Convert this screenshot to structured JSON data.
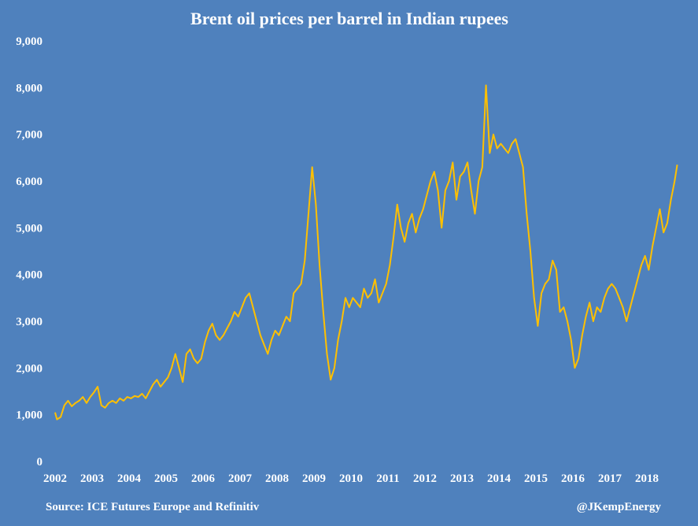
{
  "chart_data": {
    "type": "line",
    "title": "Brent oil prices per barrel in Indian rupees",
    "xlabel": "",
    "ylabel": "",
    "ylim": [
      0,
      9000
    ],
    "xlim": [
      2002.0,
      2018.85
    ],
    "grid": false,
    "legend": "none",
    "y_ticks": [
      "0",
      "1,000",
      "2,000",
      "3,000",
      "4,000",
      "5,000",
      "6,000",
      "7,000",
      "8,000",
      "9,000"
    ],
    "x_ticks": [
      "2002",
      "2003",
      "2004",
      "2005",
      "2006",
      "2007",
      "2008",
      "2009",
      "2010",
      "2011",
      "2012",
      "2013",
      "2014",
      "2015",
      "2016",
      "2017",
      "2018"
    ],
    "series": [
      {
        "name": "",
        "color": "#ffc000",
        "points": [
          [
            2002.0,
            1050
          ],
          [
            2002.05,
            900
          ],
          [
            2002.15,
            950
          ],
          [
            2002.25,
            1200
          ],
          [
            2002.35,
            1300
          ],
          [
            2002.45,
            1180
          ],
          [
            2002.55,
            1250
          ],
          [
            2002.65,
            1300
          ],
          [
            2002.75,
            1380
          ],
          [
            2002.85,
            1250
          ],
          [
            2002.95,
            1380
          ],
          [
            2003.05,
            1480
          ],
          [
            2003.15,
            1600
          ],
          [
            2003.25,
            1200
          ],
          [
            2003.35,
            1150
          ],
          [
            2003.45,
            1250
          ],
          [
            2003.55,
            1300
          ],
          [
            2003.65,
            1250
          ],
          [
            2003.75,
            1350
          ],
          [
            2003.85,
            1300
          ],
          [
            2003.95,
            1380
          ],
          [
            2004.05,
            1350
          ],
          [
            2004.15,
            1400
          ],
          [
            2004.25,
            1380
          ],
          [
            2004.35,
            1450
          ],
          [
            2004.45,
            1350
          ],
          [
            2004.55,
            1500
          ],
          [
            2004.65,
            1650
          ],
          [
            2004.75,
            1750
          ],
          [
            2004.85,
            1600
          ],
          [
            2004.95,
            1700
          ],
          [
            2005.05,
            1800
          ],
          [
            2005.15,
            2000
          ],
          [
            2005.25,
            2300
          ],
          [
            2005.35,
            2000
          ],
          [
            2005.45,
            1700
          ],
          [
            2005.55,
            2300
          ],
          [
            2005.65,
            2400
          ],
          [
            2005.75,
            2200
          ],
          [
            2005.85,
            2100
          ],
          [
            2005.95,
            2200
          ],
          [
            2006.05,
            2550
          ],
          [
            2006.15,
            2800
          ],
          [
            2006.25,
            2950
          ],
          [
            2006.35,
            2700
          ],
          [
            2006.45,
            2600
          ],
          [
            2006.55,
            2700
          ],
          [
            2006.65,
            2850
          ],
          [
            2006.75,
            3000
          ],
          [
            2006.85,
            3200
          ],
          [
            2006.95,
            3100
          ],
          [
            2007.05,
            3300
          ],
          [
            2007.15,
            3500
          ],
          [
            2007.25,
            3600
          ],
          [
            2007.35,
            3300
          ],
          [
            2007.45,
            3000
          ],
          [
            2007.55,
            2700
          ],
          [
            2007.65,
            2500
          ],
          [
            2007.75,
            2300
          ],
          [
            2007.85,
            2600
          ],
          [
            2007.95,
            2800
          ],
          [
            2008.05,
            2700
          ],
          [
            2008.15,
            2900
          ],
          [
            2008.25,
            3100
          ],
          [
            2008.35,
            3000
          ],
          [
            2008.45,
            3600
          ],
          [
            2008.55,
            3700
          ],
          [
            2008.65,
            3800
          ],
          [
            2008.75,
            4300
          ],
          [
            2008.85,
            5300
          ],
          [
            2008.95,
            6300
          ],
          [
            2009.05,
            5500
          ],
          [
            2009.15,
            4200
          ],
          [
            2009.25,
            3200
          ],
          [
            2009.35,
            2300
          ],
          [
            2009.45,
            1750
          ],
          [
            2009.55,
            2000
          ],
          [
            2009.65,
            2600
          ],
          [
            2009.75,
            3000
          ],
          [
            2009.85,
            3500
          ],
          [
            2009.95,
            3300
          ],
          [
            2010.05,
            3500
          ],
          [
            2010.15,
            3400
          ],
          [
            2010.25,
            3300
          ],
          [
            2010.35,
            3700
          ],
          [
            2010.45,
            3500
          ],
          [
            2010.55,
            3600
          ],
          [
            2010.65,
            3900
          ],
          [
            2010.75,
            3400
          ],
          [
            2010.85,
            3600
          ],
          [
            2010.95,
            3800
          ],
          [
            2011.05,
            4200
          ],
          [
            2011.15,
            4800
          ],
          [
            2011.25,
            5500
          ],
          [
            2011.35,
            5000
          ],
          [
            2011.45,
            4700
          ],
          [
            2011.55,
            5100
          ],
          [
            2011.65,
            5300
          ],
          [
            2011.75,
            4900
          ],
          [
            2011.85,
            5200
          ],
          [
            2011.95,
            5400
          ],
          [
            2012.05,
            5700
          ],
          [
            2012.15,
            6000
          ],
          [
            2012.25,
            6200
          ],
          [
            2012.35,
            5800
          ],
          [
            2012.45,
            5000
          ],
          [
            2012.55,
            5800
          ],
          [
            2012.65,
            6000
          ],
          [
            2012.75,
            6400
          ],
          [
            2012.85,
            5600
          ],
          [
            2012.95,
            6100
          ],
          [
            2013.05,
            6200
          ],
          [
            2013.15,
            6400
          ],
          [
            2013.25,
            5800
          ],
          [
            2013.35,
            5300
          ],
          [
            2013.45,
            6000
          ],
          [
            2013.55,
            6300
          ],
          [
            2013.65,
            8050
          ],
          [
            2013.75,
            6600
          ],
          [
            2013.85,
            7000
          ],
          [
            2013.95,
            6700
          ],
          [
            2014.05,
            6800
          ],
          [
            2014.15,
            6700
          ],
          [
            2014.25,
            6600
          ],
          [
            2014.35,
            6800
          ],
          [
            2014.45,
            6900
          ],
          [
            2014.55,
            6600
          ],
          [
            2014.65,
            6300
          ],
          [
            2014.75,
            5300
          ],
          [
            2014.85,
            4500
          ],
          [
            2014.95,
            3500
          ],
          [
            2015.05,
            2900
          ],
          [
            2015.15,
            3600
          ],
          [
            2015.25,
            3800
          ],
          [
            2015.35,
            3900
          ],
          [
            2015.45,
            4300
          ],
          [
            2015.55,
            4100
          ],
          [
            2015.65,
            3200
          ],
          [
            2015.75,
            3300
          ],
          [
            2015.85,
            3000
          ],
          [
            2015.95,
            2600
          ],
          [
            2016.05,
            2000
          ],
          [
            2016.15,
            2200
          ],
          [
            2016.25,
            2700
          ],
          [
            2016.35,
            3100
          ],
          [
            2016.45,
            3400
          ],
          [
            2016.55,
            3000
          ],
          [
            2016.65,
            3300
          ],
          [
            2016.75,
            3200
          ],
          [
            2016.85,
            3500
          ],
          [
            2016.95,
            3700
          ],
          [
            2017.05,
            3800
          ],
          [
            2017.15,
            3700
          ],
          [
            2017.25,
            3500
          ],
          [
            2017.35,
            3300
          ],
          [
            2017.45,
            3000
          ],
          [
            2017.55,
            3300
          ],
          [
            2017.65,
            3600
          ],
          [
            2017.75,
            3900
          ],
          [
            2017.85,
            4200
          ],
          [
            2017.95,
            4400
          ],
          [
            2018.05,
            4100
          ],
          [
            2018.15,
            4600
          ],
          [
            2018.25,
            5000
          ],
          [
            2018.35,
            5400
          ],
          [
            2018.45,
            4900
          ],
          [
            2018.55,
            5100
          ],
          [
            2018.65,
            5600
          ],
          [
            2018.75,
            6000
          ],
          [
            2018.82,
            6350
          ]
        ]
      }
    ]
  },
  "footer": {
    "source": "Source: ICE Futures Europe and Refinitiv",
    "credit": "@JKempEnergy"
  }
}
